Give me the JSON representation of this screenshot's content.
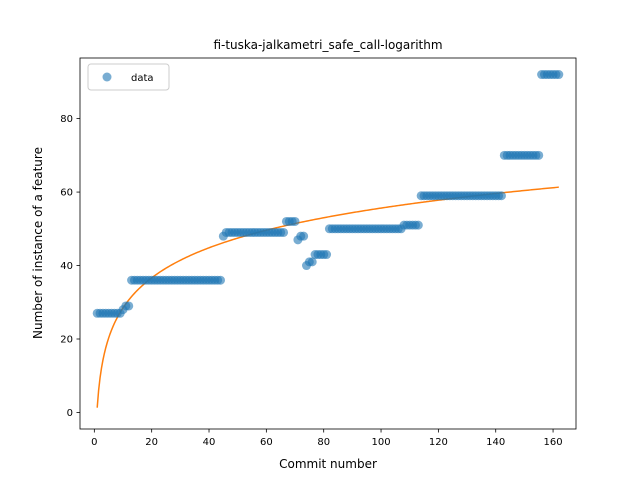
{
  "chart_data": {
    "type": "scatter",
    "title": "fi-tuska-jalkametri_safe_call-logarithm",
    "xlabel": "Commit number",
    "ylabel": "Number of instance of a feature",
    "xlim": [
      -5,
      168
    ],
    "ylim": [
      -4.5,
      96.5
    ],
    "xticks": [
      0,
      20,
      40,
      60,
      80,
      100,
      120,
      140,
      160
    ],
    "yticks": [
      0,
      20,
      40,
      60,
      80
    ],
    "grid": false,
    "legend": {
      "placement": "top-left",
      "entries": [
        "data"
      ]
    },
    "series": [
      {
        "name": "data",
        "kind": "points",
        "color": "#1f77b4",
        "opacity": 0.6,
        "points": [
          [
            1,
            27
          ],
          [
            2,
            27
          ],
          [
            3,
            27
          ],
          [
            4,
            27
          ],
          [
            5,
            27
          ],
          [
            6,
            27
          ],
          [
            7,
            27
          ],
          [
            8,
            27
          ],
          [
            9,
            27
          ],
          [
            10,
            28
          ],
          [
            11,
            29
          ],
          [
            12,
            29
          ],
          [
            13,
            36
          ],
          [
            14,
            36
          ],
          [
            15,
            36
          ],
          [
            16,
            36
          ],
          [
            17,
            36
          ],
          [
            18,
            36
          ],
          [
            19,
            36
          ],
          [
            20,
            36
          ],
          [
            21,
            36
          ],
          [
            22,
            36
          ],
          [
            23,
            36
          ],
          [
            24,
            36
          ],
          [
            25,
            36
          ],
          [
            26,
            36
          ],
          [
            27,
            36
          ],
          [
            28,
            36
          ],
          [
            29,
            36
          ],
          [
            30,
            36
          ],
          [
            31,
            36
          ],
          [
            32,
            36
          ],
          [
            33,
            36
          ],
          [
            34,
            36
          ],
          [
            35,
            36
          ],
          [
            36,
            36
          ],
          [
            37,
            36
          ],
          [
            38,
            36
          ],
          [
            39,
            36
          ],
          [
            40,
            36
          ],
          [
            41,
            36
          ],
          [
            42,
            36
          ],
          [
            43,
            36
          ],
          [
            44,
            36
          ],
          [
            45,
            48
          ],
          [
            46,
            49
          ],
          [
            47,
            49
          ],
          [
            48,
            49
          ],
          [
            49,
            49
          ],
          [
            50,
            49
          ],
          [
            51,
            49
          ],
          [
            52,
            49
          ],
          [
            53,
            49
          ],
          [
            54,
            49
          ],
          [
            55,
            49
          ],
          [
            56,
            49
          ],
          [
            57,
            49
          ],
          [
            58,
            49
          ],
          [
            59,
            49
          ],
          [
            60,
            49
          ],
          [
            61,
            49
          ],
          [
            62,
            49
          ],
          [
            63,
            49
          ],
          [
            64,
            49
          ],
          [
            65,
            49
          ],
          [
            66,
            49
          ],
          [
            67,
            52
          ],
          [
            68,
            52
          ],
          [
            69,
            52
          ],
          [
            70,
            52
          ],
          [
            71,
            47
          ],
          [
            72,
            48
          ],
          [
            73,
            48
          ],
          [
            74,
            40
          ],
          [
            75,
            41
          ],
          [
            76,
            41
          ],
          [
            77,
            43
          ],
          [
            78,
            43
          ],
          [
            79,
            43
          ],
          [
            80,
            43
          ],
          [
            81,
            43
          ],
          [
            82,
            50
          ],
          [
            83,
            50
          ],
          [
            84,
            50
          ],
          [
            85,
            50
          ],
          [
            86,
            50
          ],
          [
            87,
            50
          ],
          [
            88,
            50
          ],
          [
            89,
            50
          ],
          [
            90,
            50
          ],
          [
            91,
            50
          ],
          [
            92,
            50
          ],
          [
            93,
            50
          ],
          [
            94,
            50
          ],
          [
            95,
            50
          ],
          [
            96,
            50
          ],
          [
            97,
            50
          ],
          [
            98,
            50
          ],
          [
            99,
            50
          ],
          [
            100,
            50
          ],
          [
            101,
            50
          ],
          [
            102,
            50
          ],
          [
            103,
            50
          ],
          [
            104,
            50
          ],
          [
            105,
            50
          ],
          [
            106,
            50
          ],
          [
            107,
            50
          ],
          [
            108,
            51
          ],
          [
            109,
            51
          ],
          [
            110,
            51
          ],
          [
            111,
            51
          ],
          [
            112,
            51
          ],
          [
            113,
            51
          ],
          [
            114,
            59
          ],
          [
            115,
            59
          ],
          [
            116,
            59
          ],
          [
            117,
            59
          ],
          [
            118,
            59
          ],
          [
            119,
            59
          ],
          [
            120,
            59
          ],
          [
            121,
            59
          ],
          [
            122,
            59
          ],
          [
            123,
            59
          ],
          [
            124,
            59
          ],
          [
            125,
            59
          ],
          [
            126,
            59
          ],
          [
            127,
            59
          ],
          [
            128,
            59
          ],
          [
            129,
            59
          ],
          [
            130,
            59
          ],
          [
            131,
            59
          ],
          [
            132,
            59
          ],
          [
            133,
            59
          ],
          [
            134,
            59
          ],
          [
            135,
            59
          ],
          [
            136,
            59
          ],
          [
            137,
            59
          ],
          [
            138,
            59
          ],
          [
            139,
            59
          ],
          [
            140,
            59
          ],
          [
            141,
            59
          ],
          [
            142,
            59
          ],
          [
            143,
            70
          ],
          [
            144,
            70
          ],
          [
            145,
            70
          ],
          [
            146,
            70
          ],
          [
            147,
            70
          ],
          [
            148,
            70
          ],
          [
            149,
            70
          ],
          [
            150,
            70
          ],
          [
            151,
            70
          ],
          [
            152,
            70
          ],
          [
            153,
            70
          ],
          [
            154,
            70
          ],
          [
            155,
            70
          ],
          [
            156,
            92
          ],
          [
            157,
            92
          ],
          [
            158,
            92
          ],
          [
            159,
            92
          ],
          [
            160,
            92
          ],
          [
            161,
            92
          ],
          [
            162,
            92
          ]
        ]
      },
      {
        "kind": "line",
        "color": "#ff7f0e",
        "formula": "y = a + b*ln(x)",
        "a": 1.3,
        "b": 11.8,
        "x_range": [
          1,
          162
        ]
      }
    ]
  }
}
